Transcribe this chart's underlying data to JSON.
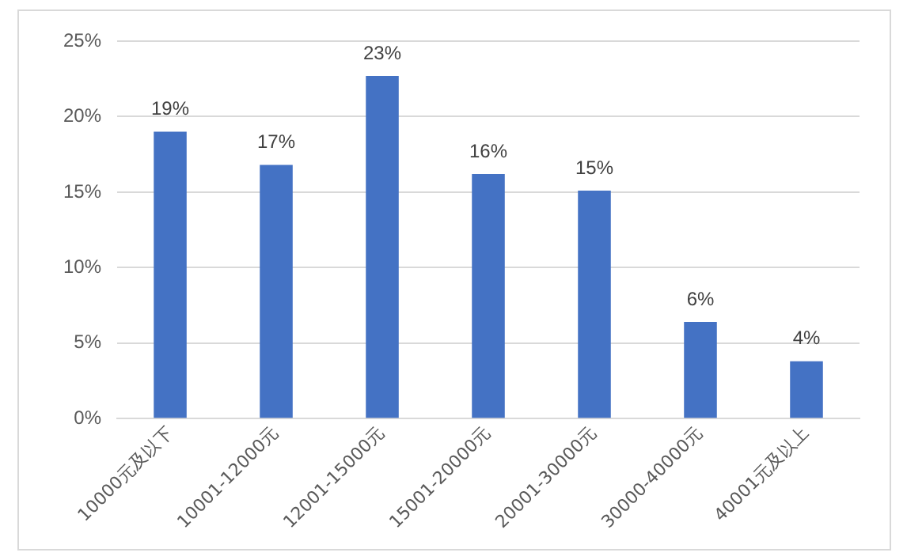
{
  "chart_data": {
    "type": "bar",
    "categories": [
      "10000元及以下",
      "10001-12000元",
      "12001-15000元",
      "15001-20000元",
      "20001-30000元",
      "30000-40000元",
      "40001元及以上"
    ],
    "values": [
      19.0,
      16.8,
      22.7,
      16.2,
      15.1,
      6.4,
      3.8
    ],
    "value_labels": [
      "19%",
      "17%",
      "23%",
      "16%",
      "15%",
      "6%",
      "4%"
    ],
    "color": "#4472c4",
    "ylim": [
      0,
      25
    ],
    "yticks": [
      {
        "value": 0,
        "label": "0%"
      },
      {
        "value": 5,
        "label": "5%"
      },
      {
        "value": 10,
        "label": "10%"
      },
      {
        "value": 15,
        "label": "15%"
      },
      {
        "value": 20,
        "label": "20%"
      },
      {
        "value": 25,
        "label": "25%"
      }
    ],
    "grid": "y"
  }
}
